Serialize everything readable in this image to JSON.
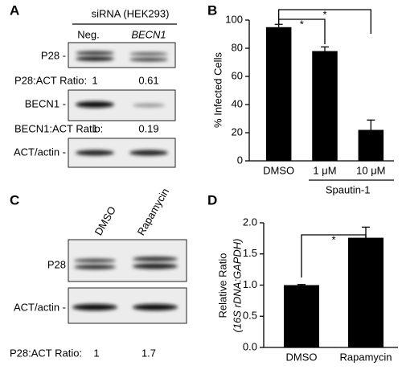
{
  "chart_data": [
    {
      "type": "bar",
      "panel_label": "B",
      "y_label": "% Infected Cells",
      "categories": [
        "DMSO",
        "1 μM",
        "10 μM"
      ],
      "group_label": "Spautin-1",
      "values": [
        95,
        78,
        22
      ],
      "errors": [
        2,
        3,
        7
      ],
      "color": "#000000",
      "ylim": [
        0,
        100
      ],
      "yticks": [
        0,
        20,
        40,
        60,
        80,
        100
      ],
      "annotations": [
        "*",
        "*"
      ]
    },
    {
      "type": "bar",
      "panel_label": "D",
      "y_label": [
        "Relative Ratio",
        "(16S rDNA:GAPDH)"
      ],
      "categories": [
        "DMSO",
        "Rapamycin"
      ],
      "values": [
        1.0,
        1.76
      ],
      "errors": [
        0.01,
        0.17
      ],
      "color": "#000000",
      "ylim": [
        0,
        2.0
      ],
      "yticks": [
        {
          "value": 0,
          "label": "0.0"
        },
        {
          "value": 0.5,
          "label": "0.5"
        },
        {
          "value": 1.0,
          "label": "1.0"
        },
        {
          "value": 1.5,
          "label": "1.5"
        },
        {
          "value": 2.0,
          "label": "2.0"
        }
      ],
      "annotations": [
        "*"
      ]
    }
  ],
  "blots": [
    {
      "panel_label": "A",
      "header": "siRNA (HEK293)",
      "lanes": [
        "Neg.",
        "BECN1"
      ],
      "rows": [
        "P28 -",
        "BECN1 -",
        "ACT/actin -"
      ],
      "ratios": [
        {
          "label": "P28:ACT Ratio:",
          "values": [
            1,
            0.61
          ]
        },
        {
          "label": "BECN1:ACT Ratio:",
          "values": [
            1,
            0.19
          ]
        }
      ]
    },
    {
      "panel_label": "C",
      "lanes": [
        "DMSO",
        "Rapamycin"
      ],
      "rows": [
        "P28",
        "ACT/actin -"
      ],
      "ratios": [
        {
          "label": "P28:ACT Ratio:",
          "values": [
            1,
            1.7
          ]
        }
      ]
    }
  ]
}
